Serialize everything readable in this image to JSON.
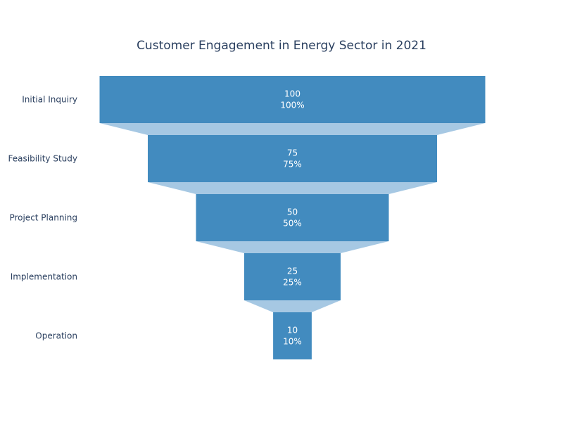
{
  "chart_data": {
    "type": "funnel",
    "title": "Customer Engagement in Energy Sector in 2021",
    "stages": [
      "Initial Inquiry",
      "Feasibility Study",
      "Project Planning",
      "Implementation",
      "Operation"
    ],
    "values": [
      100,
      75,
      50,
      25,
      10
    ],
    "percent_labels": [
      "100%",
      "75%",
      "50%",
      "25%",
      "10%"
    ],
    "colors": {
      "bar": "#428bbf",
      "connector": "#a6c8e3",
      "label_text": "#ffffff",
      "axis_text": "#2a3f5f"
    }
  }
}
